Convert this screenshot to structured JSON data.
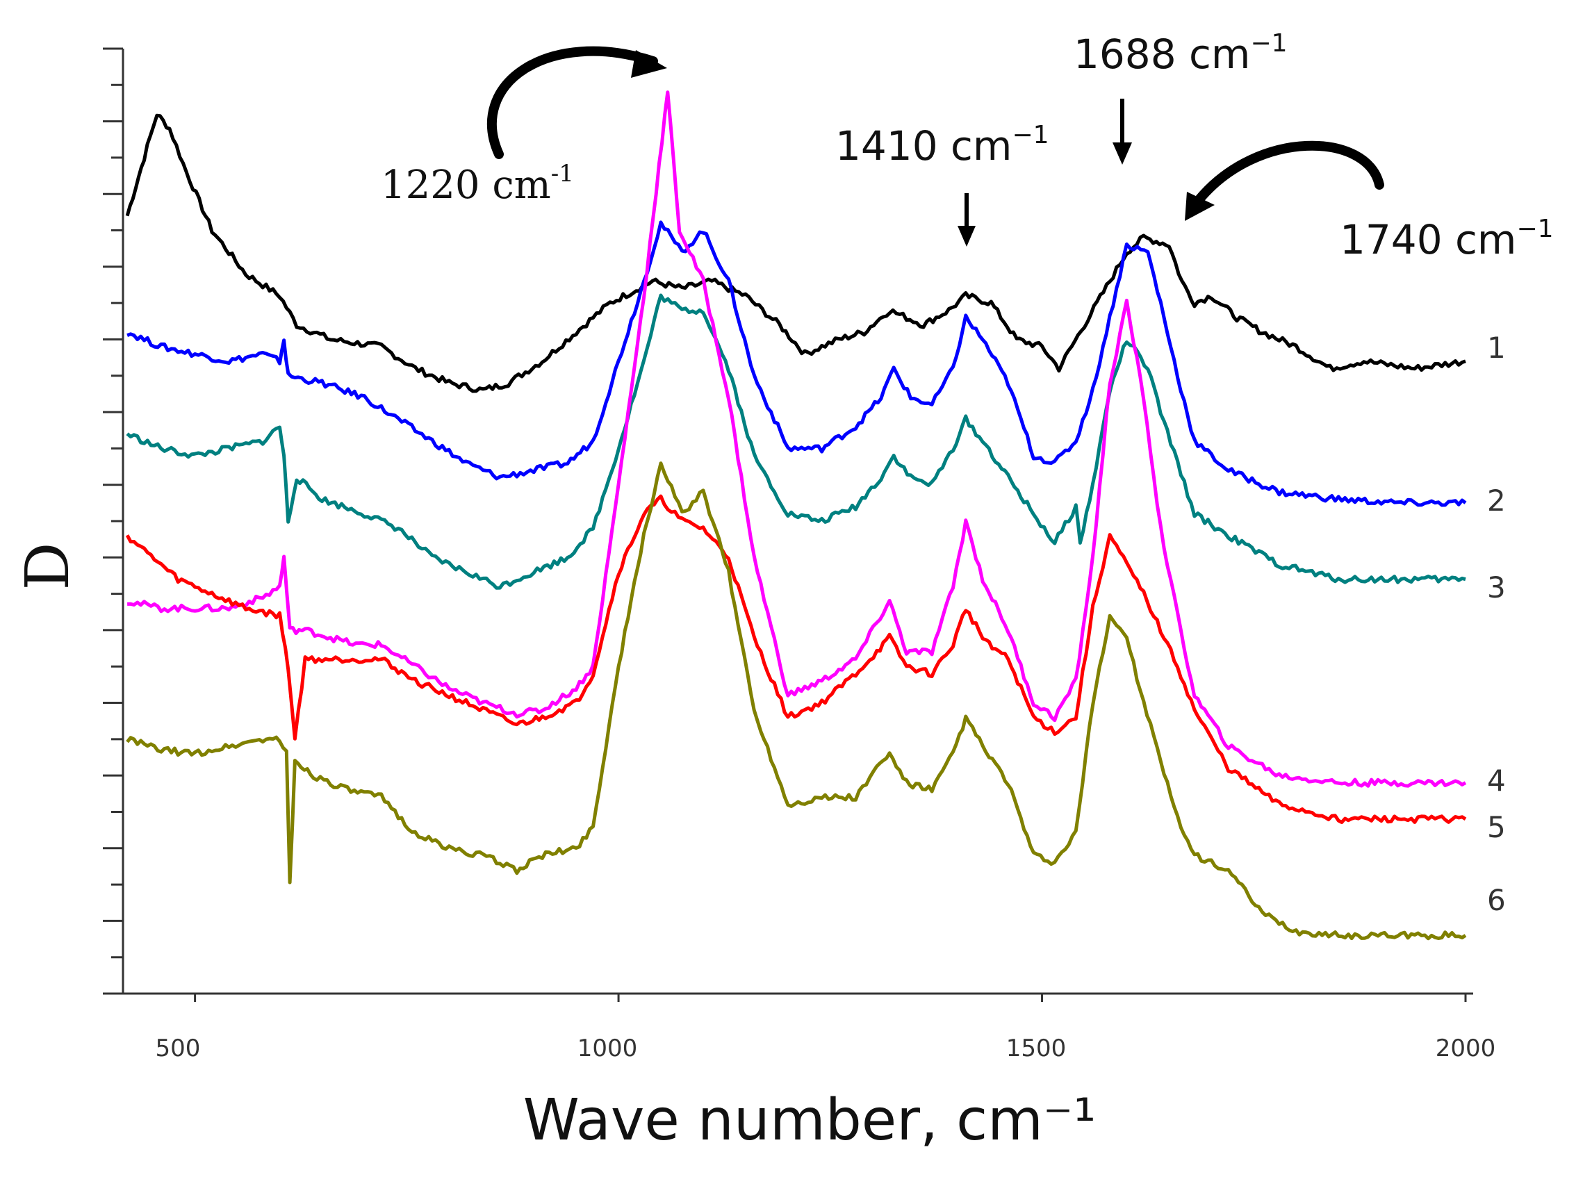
{
  "chart_data": {
    "type": "line",
    "title": "",
    "xlabel": "Wave number, cm⁻¹",
    "ylabel": "D",
    "xlim": [
      415,
      2000
    ],
    "ylim": [
      0,
      13
    ],
    "x_ticks": [
      "500",
      "1000",
      "1500",
      "2000"
    ],
    "grid": false,
    "series": [
      {
        "name": "1",
        "color": "#000000",
        "points": [
          [
            420,
            10.7
          ],
          [
            430,
            11.1
          ],
          [
            440,
            11.5
          ],
          [
            455,
            12.1
          ],
          [
            470,
            11.9
          ],
          [
            490,
            11.3
          ],
          [
            520,
            10.5
          ],
          [
            560,
            9.9
          ],
          [
            600,
            9.6
          ],
          [
            620,
            9.2
          ],
          [
            660,
            9.0
          ],
          [
            720,
            8.9
          ],
          [
            760,
            8.6
          ],
          [
            800,
            8.4
          ],
          [
            840,
            8.3
          ],
          [
            870,
            8.4
          ],
          [
            910,
            8.7
          ],
          [
            950,
            9.1
          ],
          [
            990,
            9.5
          ],
          [
            1040,
            9.8
          ],
          [
            1075,
            9.7
          ],
          [
            1110,
            9.8
          ],
          [
            1150,
            9.6
          ],
          [
            1190,
            9.2
          ],
          [
            1220,
            8.8
          ],
          [
            1260,
            9.0
          ],
          [
            1290,
            9.1
          ],
          [
            1320,
            9.4
          ],
          [
            1360,
            9.2
          ],
          [
            1390,
            9.4
          ],
          [
            1410,
            9.6
          ],
          [
            1440,
            9.5
          ],
          [
            1470,
            9.0
          ],
          [
            1500,
            8.9
          ],
          [
            1520,
            8.6
          ],
          [
            1550,
            9.2
          ],
          [
            1580,
            9.8
          ],
          [
            1600,
            10.2
          ],
          [
            1620,
            10.4
          ],
          [
            1650,
            10.3
          ],
          [
            1665,
            9.8
          ],
          [
            1680,
            9.5
          ],
          [
            1700,
            9.6
          ],
          [
            1730,
            9.3
          ],
          [
            1760,
            9.1
          ],
          [
            1800,
            8.9
          ],
          [
            1840,
            8.6
          ],
          [
            1880,
            8.7
          ],
          [
            1940,
            8.6
          ],
          [
            2000,
            8.7
          ]
        ]
      },
      {
        "name": "2",
        "color": "#0000ff",
        "points": [
          [
            420,
            9.1
          ],
          [
            460,
            8.9
          ],
          [
            500,
            8.8
          ],
          [
            540,
            8.7
          ],
          [
            580,
            8.8
          ],
          [
            600,
            8.7
          ],
          [
            605,
            9.0
          ],
          [
            610,
            8.5
          ],
          [
            650,
            8.4
          ],
          [
            700,
            8.2
          ],
          [
            740,
            7.9
          ],
          [
            780,
            7.6
          ],
          [
            820,
            7.3
          ],
          [
            860,
            7.1
          ],
          [
            900,
            7.2
          ],
          [
            940,
            7.3
          ],
          [
            970,
            7.6
          ],
          [
            1000,
            8.7
          ],
          [
            1030,
            9.8
          ],
          [
            1050,
            10.6
          ],
          [
            1075,
            10.2
          ],
          [
            1100,
            10.5
          ],
          [
            1130,
            9.8
          ],
          [
            1160,
            8.5
          ],
          [
            1200,
            7.5
          ],
          [
            1240,
            7.5
          ],
          [
            1280,
            7.8
          ],
          [
            1310,
            8.2
          ],
          [
            1325,
            8.6
          ],
          [
            1345,
            8.2
          ],
          [
            1370,
            8.1
          ],
          [
            1395,
            8.6
          ],
          [
            1410,
            9.3
          ],
          [
            1430,
            9.0
          ],
          [
            1460,
            8.4
          ],
          [
            1490,
            7.4
          ],
          [
            1515,
            7.3
          ],
          [
            1540,
            7.6
          ],
          [
            1560,
            8.3
          ],
          [
            1580,
            9.3
          ],
          [
            1600,
            10.3
          ],
          [
            1625,
            10.2
          ],
          [
            1640,
            9.5
          ],
          [
            1660,
            8.5
          ],
          [
            1680,
            7.6
          ],
          [
            1720,
            7.2
          ],
          [
            1780,
            6.9
          ],
          [
            1850,
            6.8
          ],
          [
            1920,
            6.75
          ],
          [
            2000,
            6.75
          ]
        ]
      },
      {
        "name": "3",
        "color": "#008080",
        "points": [
          [
            420,
            7.7
          ],
          [
            460,
            7.5
          ],
          [
            500,
            7.4
          ],
          [
            540,
            7.5
          ],
          [
            580,
            7.6
          ],
          [
            600,
            7.8
          ],
          [
            605,
            7.4
          ],
          [
            610,
            6.5
          ],
          [
            620,
            7.1
          ],
          [
            650,
            6.8
          ],
          [
            700,
            6.6
          ],
          [
            740,
            6.4
          ],
          [
            780,
            6.0
          ],
          [
            820,
            5.8
          ],
          [
            860,
            5.6
          ],
          [
            900,
            5.8
          ],
          [
            940,
            6.0
          ],
          [
            970,
            6.4
          ],
          [
            1000,
            7.5
          ],
          [
            1030,
            8.7
          ],
          [
            1050,
            9.6
          ],
          [
            1075,
            9.4
          ],
          [
            1100,
            9.4
          ],
          [
            1130,
            8.6
          ],
          [
            1160,
            7.4
          ],
          [
            1200,
            6.6
          ],
          [
            1240,
            6.5
          ],
          [
            1280,
            6.7
          ],
          [
            1310,
            7.1
          ],
          [
            1325,
            7.4
          ],
          [
            1345,
            7.1
          ],
          [
            1370,
            7.0
          ],
          [
            1395,
            7.5
          ],
          [
            1410,
            7.9
          ],
          [
            1430,
            7.6
          ],
          [
            1460,
            7.1
          ],
          [
            1490,
            6.6
          ],
          [
            1515,
            6.2
          ],
          [
            1540,
            6.7
          ],
          [
            1545,
            6.2
          ],
          [
            1560,
            7.0
          ],
          [
            1580,
            8.3
          ],
          [
            1600,
            9.0
          ],
          [
            1625,
            8.6
          ],
          [
            1640,
            8.0
          ],
          [
            1660,
            7.3
          ],
          [
            1680,
            6.6
          ],
          [
            1720,
            6.3
          ],
          [
            1780,
            5.9
          ],
          [
            1850,
            5.7
          ],
          [
            1920,
            5.7
          ],
          [
            2000,
            5.7
          ]
        ]
      },
      {
        "name": "4",
        "color": "#ff00ff",
        "points": [
          [
            420,
            5.4
          ],
          [
            460,
            5.3
          ],
          [
            500,
            5.3
          ],
          [
            540,
            5.3
          ],
          [
            580,
            5.45
          ],
          [
            600,
            5.6
          ],
          [
            605,
            6.0
          ],
          [
            612,
            5.0
          ],
          [
            630,
            5.0
          ],
          [
            660,
            4.9
          ],
          [
            690,
            4.8
          ],
          [
            720,
            4.8
          ],
          [
            760,
            4.5
          ],
          [
            800,
            4.2
          ],
          [
            840,
            4.0
          ],
          [
            880,
            3.85
          ],
          [
            910,
            3.9
          ],
          [
            950,
            4.2
          ],
          [
            970,
            4.5
          ],
          [
            1000,
            7.0
          ],
          [
            1030,
            9.6
          ],
          [
            1048,
            11.4
          ],
          [
            1058,
            12.4
          ],
          [
            1072,
            10.5
          ],
          [
            1100,
            9.8
          ],
          [
            1130,
            8.2
          ],
          [
            1160,
            6.0
          ],
          [
            1200,
            4.1
          ],
          [
            1240,
            4.3
          ],
          [
            1280,
            4.6
          ],
          [
            1305,
            5.1
          ],
          [
            1320,
            5.4
          ],
          [
            1340,
            4.7
          ],
          [
            1370,
            4.7
          ],
          [
            1395,
            5.6
          ],
          [
            1410,
            6.5
          ],
          [
            1430,
            5.7
          ],
          [
            1460,
            5.0
          ],
          [
            1490,
            4.0
          ],
          [
            1515,
            3.8
          ],
          [
            1540,
            4.3
          ],
          [
            1560,
            6.0
          ],
          [
            1580,
            8.4
          ],
          [
            1600,
            9.5
          ],
          [
            1620,
            8.2
          ],
          [
            1640,
            6.4
          ],
          [
            1660,
            5.2
          ],
          [
            1680,
            4.1
          ],
          [
            1720,
            3.4
          ],
          [
            1780,
            3.0
          ],
          [
            1850,
            2.9
          ],
          [
            1920,
            2.9
          ],
          [
            2000,
            2.9
          ]
        ]
      },
      {
        "name": "5",
        "color": "#ff0000",
        "points": [
          [
            420,
            6.3
          ],
          [
            440,
            6.1
          ],
          [
            460,
            5.9
          ],
          [
            480,
            5.7
          ],
          [
            520,
            5.5
          ],
          [
            560,
            5.3
          ],
          [
            600,
            5.2
          ],
          [
            610,
            4.5
          ],
          [
            618,
            3.5
          ],
          [
            630,
            4.6
          ],
          [
            650,
            4.6
          ],
          [
            690,
            4.6
          ],
          [
            720,
            4.6
          ],
          [
            760,
            4.3
          ],
          [
            800,
            4.1
          ],
          [
            840,
            3.9
          ],
          [
            880,
            3.7
          ],
          [
            910,
            3.8
          ],
          [
            950,
            4.0
          ],
          [
            970,
            4.4
          ],
          [
            1000,
            5.8
          ],
          [
            1030,
            6.6
          ],
          [
            1050,
            6.8
          ],
          [
            1075,
            6.5
          ],
          [
            1100,
            6.4
          ],
          [
            1130,
            6.0
          ],
          [
            1160,
            4.9
          ],
          [
            1200,
            3.8
          ],
          [
            1240,
            4.0
          ],
          [
            1280,
            4.4
          ],
          [
            1305,
            4.7
          ],
          [
            1320,
            4.9
          ],
          [
            1340,
            4.5
          ],
          [
            1370,
            4.4
          ],
          [
            1395,
            4.8
          ],
          [
            1410,
            5.3
          ],
          [
            1430,
            4.9
          ],
          [
            1460,
            4.6
          ],
          [
            1490,
            3.8
          ],
          [
            1515,
            3.6
          ],
          [
            1540,
            3.8
          ],
          [
            1560,
            5.3
          ],
          [
            1580,
            6.3
          ],
          [
            1600,
            5.9
          ],
          [
            1620,
            5.5
          ],
          [
            1640,
            5.0
          ],
          [
            1660,
            4.5
          ],
          [
            1680,
            3.9
          ],
          [
            1720,
            3.1
          ],
          [
            1780,
            2.6
          ],
          [
            1850,
            2.4
          ],
          [
            1920,
            2.4
          ],
          [
            2000,
            2.4
          ]
        ]
      },
      {
        "name": "6",
        "color": "#808000",
        "points": [
          [
            420,
            3.5
          ],
          [
            460,
            3.35
          ],
          [
            500,
            3.3
          ],
          [
            540,
            3.4
          ],
          [
            580,
            3.5
          ],
          [
            600,
            3.5
          ],
          [
            608,
            3.3
          ],
          [
            612,
            1.5
          ],
          [
            618,
            3.2
          ],
          [
            640,
            3.0
          ],
          [
            680,
            2.8
          ],
          [
            720,
            2.7
          ],
          [
            760,
            2.2
          ],
          [
            800,
            2.0
          ],
          [
            840,
            1.9
          ],
          [
            880,
            1.7
          ],
          [
            910,
            1.9
          ],
          [
            950,
            2.0
          ],
          [
            970,
            2.3
          ],
          [
            1000,
            4.5
          ],
          [
            1030,
            6.3
          ],
          [
            1050,
            7.3
          ],
          [
            1075,
            6.6
          ],
          [
            1100,
            6.9
          ],
          [
            1130,
            5.8
          ],
          [
            1160,
            3.9
          ],
          [
            1200,
            2.6
          ],
          [
            1240,
            2.7
          ],
          [
            1280,
            2.7
          ],
          [
            1305,
            3.1
          ],
          [
            1320,
            3.3
          ],
          [
            1340,
            2.9
          ],
          [
            1370,
            2.8
          ],
          [
            1395,
            3.3
          ],
          [
            1410,
            3.8
          ],
          [
            1430,
            3.4
          ],
          [
            1460,
            2.9
          ],
          [
            1490,
            1.9
          ],
          [
            1515,
            1.8
          ],
          [
            1540,
            2.2
          ],
          [
            1560,
            4.0
          ],
          [
            1580,
            5.2
          ],
          [
            1600,
            4.9
          ],
          [
            1620,
            4.0
          ],
          [
            1640,
            3.2
          ],
          [
            1660,
            2.4
          ],
          [
            1680,
            1.9
          ],
          [
            1720,
            1.7
          ],
          [
            1760,
            1.1
          ],
          [
            1800,
            0.85
          ],
          [
            1850,
            0.8
          ],
          [
            1920,
            0.8
          ],
          [
            2000,
            0.8
          ]
        ]
      }
    ],
    "annotations": [
      {
        "text": "1220 cm",
        "sup": "-1",
        "font": "serif"
      },
      {
        "text": "1410 cm",
        "sup": "−1",
        "font": "sans"
      },
      {
        "text": "1688 cm",
        "sup": "−1",
        "font": "sans"
      },
      {
        "text": "1740 cm",
        "sup": "−1",
        "font": "sans"
      }
    ]
  }
}
